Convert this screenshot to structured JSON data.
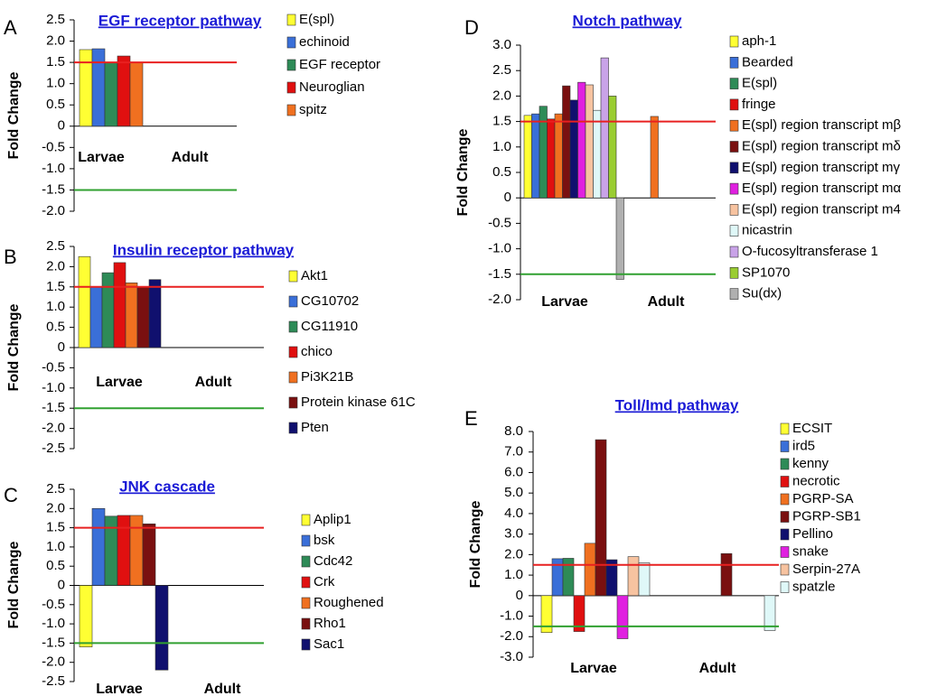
{
  "chart_data": [
    {
      "panel": "A",
      "type": "bar",
      "title": "EGF receptor pathway",
      "ylabel": "Fold Change",
      "ylim": [
        -2.0,
        2.5
      ],
      "yticks": [
        "2.5",
        "2.0",
        "1.5",
        "1.0",
        "0.5",
        "0",
        "-0.5",
        "-1.0",
        "-1.5",
        "-2.0"
      ],
      "categories": [
        "Larvae",
        "Adult"
      ],
      "threshold_up": 1.5,
      "threshold_down": -1.5,
      "series": [
        {
          "name": "E(spl)",
          "color": "#ffff33",
          "values": [
            1.8,
            null
          ]
        },
        {
          "name": "echinoid",
          "color": "#3a6fd8",
          "values": [
            1.82,
            null
          ]
        },
        {
          "name": "EGF receptor",
          "color": "#2e8b57",
          "values": [
            1.5,
            null
          ]
        },
        {
          "name": "Neuroglian",
          "color": "#e01010",
          "values": [
            1.65,
            null
          ]
        },
        {
          "name": "spitz",
          "color": "#f07020",
          "values": [
            1.5,
            null
          ]
        }
      ]
    },
    {
      "panel": "B",
      "type": "bar",
      "title": "Insulin receptor pathway",
      "ylabel": "Fold Change",
      "ylim": [
        -2.5,
        2.5
      ],
      "yticks": [
        "2.5",
        "2.0",
        "1.5",
        "1.0",
        "0.5",
        "0",
        "-0.5",
        "-1.0",
        "-1.5",
        "-2.0",
        "-2.5"
      ],
      "categories": [
        "Larvae",
        "Adult"
      ],
      "threshold_up": 1.5,
      "threshold_down": -1.5,
      "series": [
        {
          "name": "Akt1",
          "color": "#ffff33",
          "values": [
            2.25,
            null
          ]
        },
        {
          "name": "CG10702",
          "color": "#3a6fd8",
          "values": [
            1.5,
            null
          ]
        },
        {
          "name": "CG11910",
          "color": "#2e8b57",
          "values": [
            1.85,
            null
          ]
        },
        {
          "name": "chico",
          "color": "#e01010",
          "values": [
            2.1,
            null
          ]
        },
        {
          "name": "Pi3K21B",
          "color": "#f07020",
          "values": [
            1.6,
            null
          ]
        },
        {
          "name": "Protein kinase 61C",
          "color": "#7a1010",
          "values": [
            1.5,
            null
          ]
        },
        {
          "name": "Pten",
          "color": "#10106e",
          "values": [
            1.68,
            null
          ]
        }
      ]
    },
    {
      "panel": "C",
      "type": "bar",
      "title": "JNK cascade",
      "ylabel": "Fold Change",
      "ylim": [
        -2.5,
        2.5
      ],
      "yticks": [
        "2.5",
        "2.0",
        "1.5",
        "1.0",
        "0.5",
        "0",
        "-0.5",
        "-1.0",
        "-1.5",
        "-2.0",
        "-2.5"
      ],
      "categories": [
        "Larvae",
        "Adult"
      ],
      "threshold_up": 1.5,
      "threshold_down": -1.5,
      "series": [
        {
          "name": "Aplip1",
          "color": "#ffff33",
          "values": [
            -1.6,
            null
          ]
        },
        {
          "name": "bsk",
          "color": "#3a6fd8",
          "values": [
            2.0,
            null
          ]
        },
        {
          "name": "Cdc42",
          "color": "#2e8b57",
          "values": [
            1.8,
            null
          ]
        },
        {
          "name": "Crk",
          "color": "#e01010",
          "values": [
            1.82,
            null
          ]
        },
        {
          "name": "Roughened",
          "color": "#f07020",
          "values": [
            1.82,
            null
          ]
        },
        {
          "name": "Rho1",
          "color": "#7a1010",
          "values": [
            1.6,
            null
          ]
        },
        {
          "name": "Sac1",
          "color": "#10106e",
          "values": [
            -2.2,
            null
          ]
        }
      ]
    },
    {
      "panel": "D",
      "type": "bar",
      "title": "Notch pathway",
      "ylabel": "Fold Change",
      "ylim": [
        -2.0,
        3.0
      ],
      "yticks": [
        "3.0",
        "2.5",
        "2.0",
        "1.5",
        "1.0",
        "0.5",
        "0",
        "-0.5",
        "-1.0",
        "-1.5",
        "-2.0"
      ],
      "categories": [
        "Larvae",
        "Adult"
      ],
      "threshold_up": 1.5,
      "threshold_down": -1.5,
      "series": [
        {
          "name": "aph-1",
          "color": "#ffff33",
          "values": [
            1.62,
            null
          ]
        },
        {
          "name": "Bearded",
          "color": "#3a6fd8",
          "values": [
            1.65,
            null
          ]
        },
        {
          "name": "E(spl)",
          "color": "#2e8b57",
          "values": [
            1.8,
            null
          ]
        },
        {
          "name": "fringe",
          "color": "#e01010",
          "values": [
            1.55,
            null
          ]
        },
        {
          "name": "E(spl) region transcript mβ",
          "color": "#f07020",
          "values": [
            1.65,
            1.6
          ]
        },
        {
          "name": "E(spl) region transcript mδ",
          "color": "#7a1010",
          "values": [
            2.2,
            null
          ]
        },
        {
          "name": "E(spl) region transcript mγ",
          "color": "#10106e",
          "values": [
            1.92,
            null
          ]
        },
        {
          "name": "E(spl) region transcript mα",
          "color": "#e020e0",
          "values": [
            2.27,
            null
          ]
        },
        {
          "name": "E(spl) region transcript m4",
          "color": "#f7c3a0",
          "values": [
            2.22,
            null
          ]
        },
        {
          "name": "nicastrin",
          "color": "#dff8f8",
          "values": [
            1.72,
            null
          ]
        },
        {
          "name": "O-fucosyltransferase 1",
          "color": "#c9a3e8",
          "values": [
            2.75,
            null
          ]
        },
        {
          "name": "SP1070",
          "color": "#9acd32",
          "values": [
            2.0,
            null
          ]
        },
        {
          "name": "Su(dx)",
          "color": "#b0b0b0",
          "values": [
            -1.6,
            null
          ]
        }
      ]
    },
    {
      "panel": "E",
      "type": "bar",
      "title": "Toll/Imd pathway",
      "ylabel": "Fold Change",
      "ylim": [
        -3.0,
        8.0
      ],
      "yticks": [
        "8.0",
        "7.0",
        "6.0",
        "5.0",
        "4.0",
        "3.0",
        "2.0",
        "1.0",
        "0",
        "-1.0",
        "-2.0",
        "-3.0"
      ],
      "categories": [
        "Larvae",
        "Adult"
      ],
      "threshold_up": 1.5,
      "threshold_down": -1.5,
      "series": [
        {
          "name": "ECSIT",
          "color": "#ffff33",
          "values": [
            -1.8,
            null
          ]
        },
        {
          "name": "ird5",
          "color": "#3a6fd8",
          "values": [
            1.8,
            null
          ]
        },
        {
          "name": "kenny",
          "color": "#2e8b57",
          "values": [
            1.82,
            null
          ]
        },
        {
          "name": "necrotic",
          "color": "#e01010",
          "values": [
            -1.75,
            null
          ]
        },
        {
          "name": "PGRP-SA",
          "color": "#f07020",
          "values": [
            2.55,
            null
          ]
        },
        {
          "name": "PGRP-SB1",
          "color": "#7a1010",
          "values": [
            7.6,
            2.05
          ]
        },
        {
          "name": "Pellino",
          "color": "#10106e",
          "values": [
            1.75,
            null
          ]
        },
        {
          "name": "snake",
          "color": "#e020e0",
          "values": [
            -2.1,
            null
          ]
        },
        {
          "name": "Serpin-27A",
          "color": "#f7c3a0",
          "values": [
            1.9,
            null
          ]
        },
        {
          "name": "spatzle",
          "color": "#dff8f8",
          "values": [
            1.6,
            -1.7
          ]
        }
      ]
    }
  ]
}
